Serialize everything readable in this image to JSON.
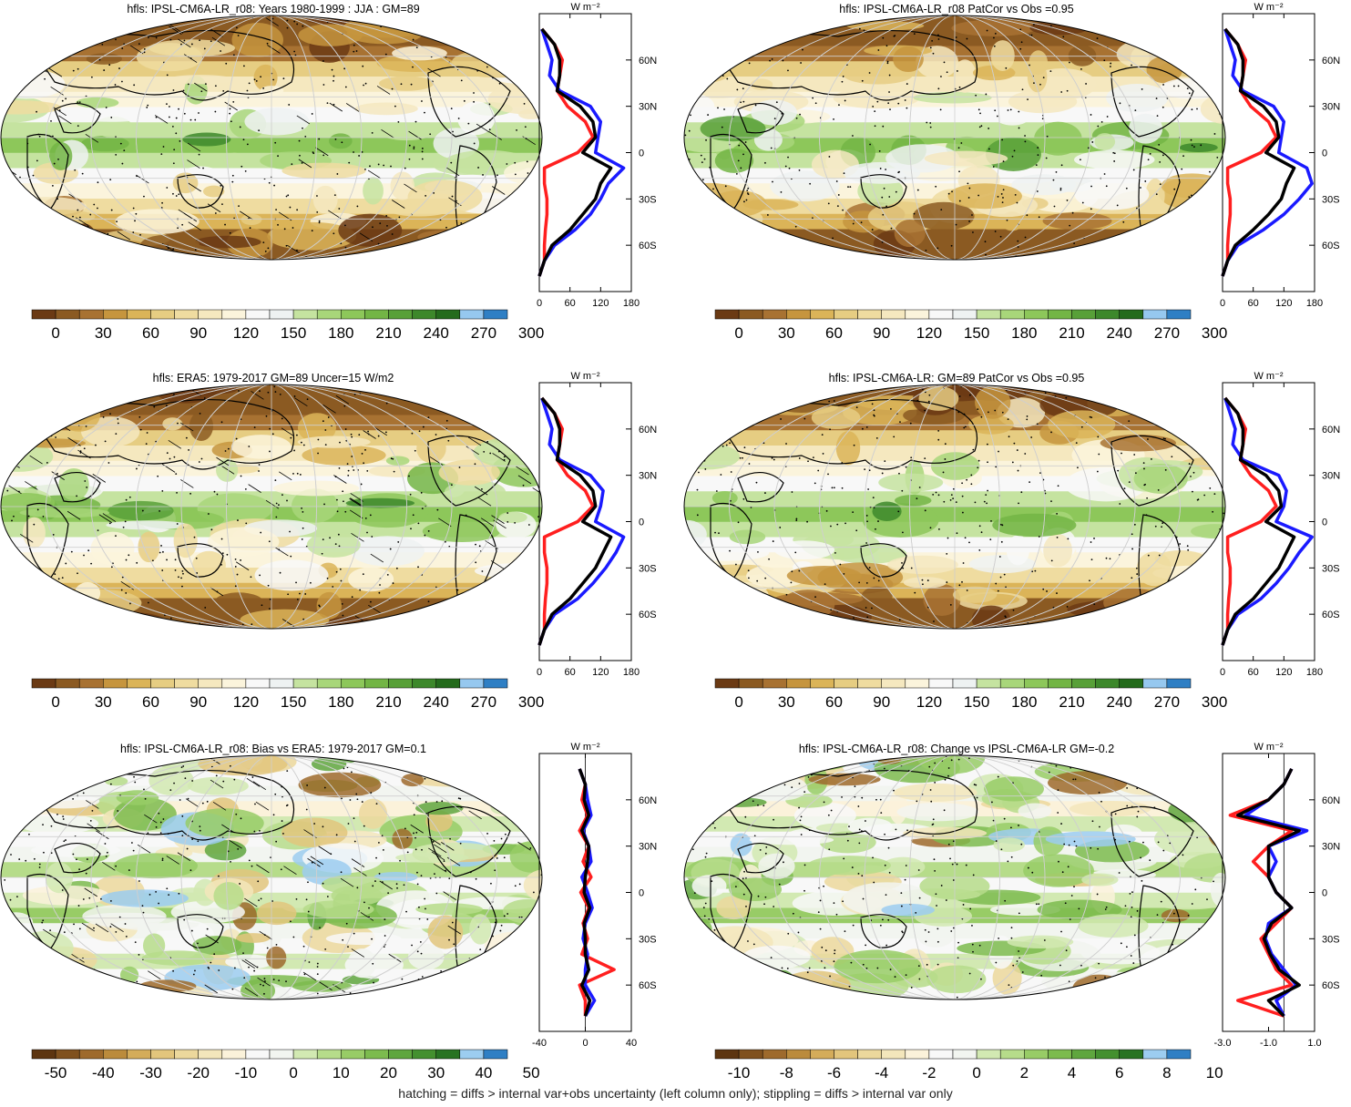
{
  "footer": "hatching = diffs > internal var+obs uncertainty (left column only); stippling = diffs > internal var only",
  "palette_abs": [
    "#6b3a14",
    "#8b5a22",
    "#a87232",
    "#c6953e",
    "#dbb458",
    "#e6cd82",
    "#efdca0",
    "#f5e8bf",
    "#fbf4dc",
    "#f8f8f8",
    "#eef2f2",
    "#c5e3a0",
    "#a8d67a",
    "#8dc75a",
    "#73b545",
    "#58a038",
    "#3d882b",
    "#246b1c",
    "#96c8ef",
    "#2f7fc4"
  ],
  "palette_diff": [
    "#5d3510",
    "#80511e",
    "#9e6a2c",
    "#bb8b3c",
    "#d4ac5a",
    "#e2c57c",
    "#ecd89c",
    "#f3e6bb",
    "#fbf2da",
    "#f8f8f8",
    "#f2f5f0",
    "#d2e9b2",
    "#b6dc8a",
    "#98cc66",
    "#7cbb4e",
    "#5fa63e",
    "#44902f",
    "#287322",
    "#9ccdf0",
    "#2f7fc4"
  ],
  "land_color": "#000000",
  "profile_colors": {
    "model": "#ff1f1f",
    "obs": "#1a1aff",
    "ref": "#000000"
  },
  "units": "W m⁻²",
  "panels": [
    {
      "id": "p1",
      "title": "hfls: IPSL-CM6A-LR_r08: Years 1980-1999 : JJA : GM=89",
      "scheme": "abs",
      "cb_labels": [
        "0",
        "30",
        "60",
        "90",
        "120",
        "150",
        "180",
        "210",
        "240",
        "270",
        "300"
      ],
      "prof_xticks": [
        "0",
        "60",
        "120",
        "180"
      ],
      "lat_ticks": [
        "60N",
        "30N",
        "0",
        "30S",
        "60S"
      ]
    },
    {
      "id": "p2",
      "title": "hfls: IPSL-CM6A-LR_r08 PatCor vs Obs =0.95",
      "scheme": "abs",
      "cb_labels": [
        "0",
        "30",
        "60",
        "90",
        "120",
        "150",
        "180",
        "210",
        "240",
        "270",
        "300"
      ],
      "prof_xticks": [
        "0",
        "60",
        "120",
        "180"
      ],
      "lat_ticks": [
        "60N",
        "30N",
        "0",
        "30S",
        "60S"
      ]
    },
    {
      "id": "p3",
      "title": "hfls: ERA5: 1979-2017 GM=89 Uncer=15 W/m2",
      "scheme": "abs",
      "cb_labels": [
        "0",
        "30",
        "60",
        "90",
        "120",
        "150",
        "180",
        "210",
        "240",
        "270",
        "300"
      ],
      "prof_xticks": [
        "0",
        "60",
        "120",
        "180"
      ],
      "lat_ticks": [
        "60N",
        "30N",
        "0",
        "30S",
        "60S"
      ]
    },
    {
      "id": "p4",
      "title": "hfls: IPSL-CM6A-LR: GM=89 PatCor vs Obs =0.95",
      "scheme": "abs",
      "cb_labels": [
        "0",
        "30",
        "60",
        "90",
        "120",
        "150",
        "180",
        "210",
        "240",
        "270",
        "300"
      ],
      "prof_xticks": [
        "0",
        "60",
        "120",
        "180"
      ],
      "lat_ticks": [
        "60N",
        "30N",
        "0",
        "30S",
        "60S"
      ]
    },
    {
      "id": "p5",
      "title": "hfls: IPSL-CM6A-LR_r08: Bias vs ERA5: 1979-2017 GM=0.1",
      "scheme": "diff",
      "cb_labels": [
        "-50",
        "-40",
        "-30",
        "-20",
        "-10",
        "0",
        "10",
        "20",
        "30",
        "40",
        "50"
      ],
      "prof_xticks": [
        "-40",
        "0",
        "40"
      ],
      "lat_ticks": [
        "60N",
        "30N",
        "0",
        "30S",
        "60S"
      ]
    },
    {
      "id": "p6",
      "title": "hfls: IPSL-CM6A-LR_r08: Change vs IPSL-CM6A-LR GM=-0.2",
      "scheme": "diff",
      "cb_labels": [
        "-10",
        "-8",
        "-6",
        "-4",
        "-2",
        "0",
        "2",
        "4",
        "6",
        "8",
        "10"
      ],
      "prof_xticks": [
        "-3.0",
        "-1.0",
        "1.0"
      ],
      "lat_ticks": [
        "60N",
        "30N",
        "0",
        "30S",
        "60S"
      ]
    }
  ],
  "chart_data": [
    {
      "type": "heatmap",
      "title": "hfls: IPSL-CM6A-LR_r08: Years 1980-1999 : JJA : GM=89",
      "colorbar": {
        "min": 0,
        "max": 300,
        "step": 30
      },
      "profile": {
        "type": "line",
        "ylabel": "",
        "xlim": [
          0,
          180
        ],
        "lat": [
          80,
          70,
          60,
          50,
          40,
          30,
          20,
          10,
          0,
          -10,
          -20,
          -30,
          -40,
          -50,
          -60,
          -70,
          -80
        ],
        "series": [
          {
            "color": "red",
            "values": [
              5,
              30,
              45,
              40,
              35,
              55,
              90,
              105,
              75,
              10,
              10,
              15,
              15,
              12,
              10,
              10,
              0
            ]
          },
          {
            "color": "blue",
            "values": [
              5,
              15,
              25,
              20,
              40,
              100,
              120,
              115,
              110,
              165,
              135,
              120,
              100,
              70,
              30,
              10,
              0
            ]
          },
          {
            "color": "black",
            "values": [
              5,
              30,
              40,
              40,
              35,
              80,
              105,
              110,
              85,
              140,
              120,
              110,
              85,
              60,
              25,
              10,
              0
            ]
          }
        ]
      }
    },
    {
      "type": "heatmap",
      "title": "hfls: IPSL-CM6A-LR_r08 PatCor vs Obs =0.95",
      "colorbar": {
        "min": 0,
        "max": 300,
        "step": 30
      },
      "profile": {
        "type": "line",
        "xlim": [
          0,
          180
        ],
        "lat": [
          80,
          70,
          60,
          50,
          40,
          30,
          20,
          10,
          0,
          -10,
          -20,
          -30,
          -40,
          -50,
          -60,
          -70,
          -80
        ],
        "series": [
          {
            "color": "red",
            "values": [
              5,
              30,
              45,
              40,
              35,
              55,
              90,
              105,
              75,
              10,
              10,
              15,
              15,
              12,
              10,
              10,
              0
            ]
          },
          {
            "color": "blue",
            "values": [
              5,
              15,
              25,
              20,
              40,
              100,
              120,
              115,
              110,
              165,
              175,
              150,
              120,
              80,
              30,
              10,
              0
            ]
          },
          {
            "color": "black",
            "values": [
              5,
              30,
              40,
              40,
              35,
              80,
              105,
              110,
              85,
              140,
              125,
              115,
              90,
              60,
              25,
              10,
              0
            ]
          }
        ]
      }
    },
    {
      "type": "heatmap",
      "title": "hfls: ERA5: 1979-2017 GM=89 Uncer=15 W/m2",
      "colorbar": {
        "min": 0,
        "max": 300,
        "step": 30
      },
      "profile": {
        "type": "line",
        "xlim": [
          0,
          180
        ],
        "lat": [
          80,
          70,
          60,
          50,
          40,
          30,
          20,
          10,
          0,
          -10,
          -20,
          -30,
          -40,
          -50,
          -60,
          -70,
          -80
        ],
        "series": [
          {
            "color": "red",
            "values": [
              5,
              30,
              45,
              40,
              35,
              55,
              90,
              105,
              75,
              10,
              10,
              15,
              15,
              12,
              10,
              10,
              0
            ]
          },
          {
            "color": "blue",
            "values": [
              5,
              15,
              25,
              20,
              40,
              100,
              125,
              120,
              110,
              165,
              150,
              130,
              105,
              75,
              30,
              10,
              0
            ]
          },
          {
            "color": "black",
            "values": [
              5,
              30,
              40,
              40,
              35,
              80,
              105,
              110,
              85,
              140,
              125,
              110,
              85,
              60,
              25,
              10,
              0
            ]
          }
        ]
      }
    },
    {
      "type": "heatmap",
      "title": "hfls: IPSL-CM6A-LR: GM=89 PatCor vs Obs =0.95",
      "colorbar": {
        "min": 0,
        "max": 300,
        "step": 30
      },
      "profile": {
        "type": "line",
        "xlim": [
          0,
          180
        ],
        "lat": [
          80,
          70,
          60,
          50,
          40,
          30,
          20,
          10,
          0,
          -10,
          -20,
          -30,
          -40,
          -50,
          -60,
          -70,
          -80
        ],
        "series": [
          {
            "color": "red",
            "values": [
              5,
              30,
              45,
              40,
              35,
              55,
              90,
              105,
              75,
              10,
              10,
              15,
              15,
              12,
              10,
              10,
              0
            ]
          },
          {
            "color": "blue",
            "values": [
              5,
              15,
              25,
              20,
              40,
              110,
              125,
              120,
              105,
              175,
              150,
              130,
              105,
              75,
              30,
              10,
              0
            ]
          },
          {
            "color": "black",
            "values": [
              5,
              30,
              40,
              40,
              35,
              85,
              110,
              115,
              85,
              140,
              125,
              110,
              85,
              60,
              25,
              10,
              0
            ]
          }
        ]
      }
    },
    {
      "type": "heatmap",
      "title": "hfls: IPSL-CM6A-LR_r08: Bias vs ERA5: 1979-2017 GM=0.1",
      "colorbar": {
        "min": -50,
        "max": 50,
        "step": 10
      },
      "profile": {
        "type": "line",
        "xlim": [
          -40,
          40
        ],
        "lat": [
          80,
          70,
          60,
          50,
          40,
          30,
          20,
          10,
          0,
          -10,
          -20,
          -30,
          -40,
          -50,
          -60,
          -70,
          -80
        ],
        "series": [
          {
            "color": "red",
            "values": [
              -5,
              0,
              -3,
              2,
              -5,
              3,
              -2,
              5,
              -4,
              3,
              -2,
              2,
              -3,
              25,
              -5,
              0,
              0
            ]
          },
          {
            "color": "blue",
            "values": [
              -5,
              0,
              2,
              5,
              -2,
              3,
              5,
              -3,
              2,
              6,
              0,
              -2,
              2,
              0,
              0,
              8,
              0
            ]
          },
          {
            "color": "black",
            "values": [
              -5,
              0,
              -1,
              3,
              -3,
              3,
              2,
              0,
              -1,
              4,
              -1,
              0,
              0,
              3,
              -3,
              4,
              0
            ]
          }
        ]
      }
    },
    {
      "type": "heatmap",
      "title": "hfls: IPSL-CM6A-LR_r08: Change vs IPSL-CM6A-LR GM=-0.2",
      "colorbar": {
        "min": -10,
        "max": 10,
        "step": 2
      },
      "profile": {
        "type": "line",
        "xlim": [
          -4,
          2
        ],
        "lat": [
          80,
          70,
          60,
          50,
          40,
          30,
          20,
          10,
          0,
          -10,
          -20,
          -30,
          -40,
          -50,
          -60,
          -70,
          -80
        ],
        "series": [
          {
            "color": "red",
            "values": [
              0.5,
              0,
              -1,
              -3.5,
              0.5,
              -1,
              -2,
              -1,
              -0.5,
              0.5,
              -0.5,
              -1.5,
              -1,
              -0.5,
              0.5,
              -3,
              0
            ]
          },
          {
            "color": "blue",
            "values": [
              0.5,
              0,
              -1,
              -2.5,
              1.5,
              -1,
              -0.5,
              -1,
              -0.5,
              0.5,
              -1,
              -1.2,
              -0.8,
              0,
              0.8,
              -0.5,
              0
            ]
          },
          {
            "color": "black",
            "values": [
              0.5,
              0,
              -1,
              -3,
              1,
              -1,
              -1,
              -1,
              -0.5,
              0.5,
              -0.8,
              -1.3,
              -0.9,
              -0.3,
              1,
              -1,
              0
            ]
          }
        ]
      }
    }
  ]
}
